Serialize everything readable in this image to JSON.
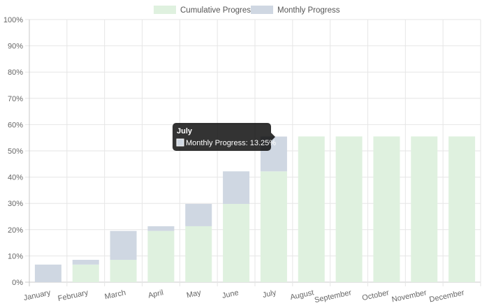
{
  "chart_data": {
    "type": "bar",
    "stacked": true,
    "categories": [
      "January",
      "February",
      "March",
      "April",
      "May",
      "June",
      "July",
      "August",
      "September",
      "October",
      "November",
      "December"
    ],
    "series": [
      {
        "name": "Cumulative Progress",
        "color": "#dff1df",
        "values": [
          0,
          6.7,
          8.5,
          19.5,
          21.3,
          29.8,
          42.2,
          55.5,
          55.5,
          55.5,
          55.5,
          55.5
        ]
      },
      {
        "name": "Monthly Progress",
        "color": "#cfd7e2",
        "values": [
          6.7,
          1.8,
          11.0,
          1.8,
          8.5,
          12.4,
          13.25,
          0,
          0,
          0,
          0,
          0
        ]
      }
    ],
    "y_ticks": [
      "0%",
      "10%",
      "20%",
      "30%",
      "40%",
      "50%",
      "60%",
      "70%",
      "80%",
      "90%",
      "100%"
    ],
    "ylim": [
      0,
      100
    ],
    "grid": true,
    "legend_position": "top",
    "tooltip": {
      "title": "July",
      "label": "Monthly Progress: 13.25%",
      "swatch_color": "#cfd7e2",
      "category_index": 6
    }
  }
}
